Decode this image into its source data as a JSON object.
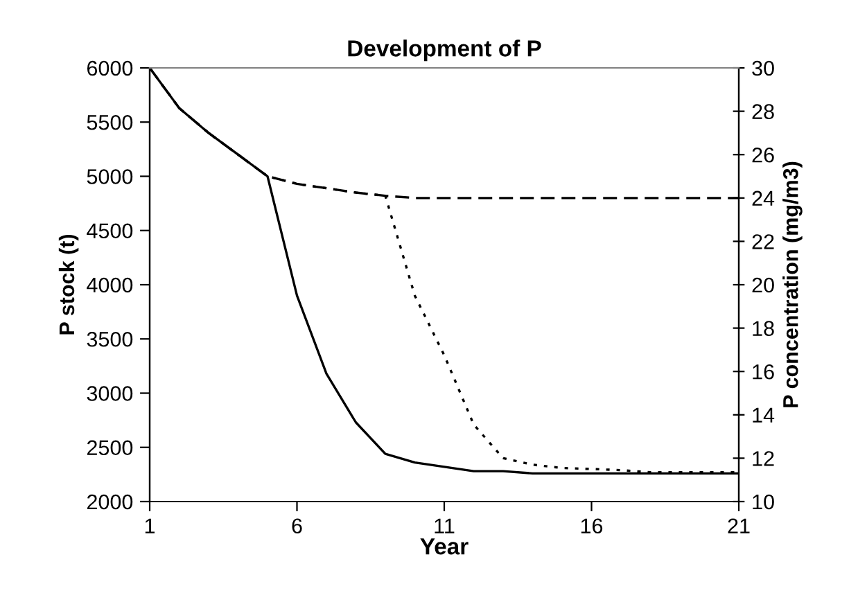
{
  "chart_data": {
    "type": "line",
    "title": "Development of P",
    "xlabel": "Year",
    "ylabel": "P stock (t)",
    "y2label": "P concentration (mg/m3)",
    "x": [
      1,
      2,
      3,
      4,
      5,
      6,
      7,
      8,
      9,
      10,
      11,
      12,
      13,
      14,
      15,
      16,
      17,
      18,
      19,
      20,
      21
    ],
    "series": [
      {
        "color": "#000000",
        "line_style": "solid",
        "values": [
          6000,
          5630,
          5400,
          5200,
          5000,
          3900,
          3180,
          2730,
          2440,
          2360,
          2320,
          2280,
          2280,
          2260,
          2260,
          2260,
          2260,
          2260,
          2260,
          2260,
          2260
        ]
      },
      {
        "color": "#000000",
        "line_style": "dashed",
        "values": [
          6000,
          5630,
          5400,
          5200,
          5000,
          4930,
          4890,
          4850,
          4820,
          4800,
          4800,
          4800,
          4800,
          4800,
          4800,
          4800,
          4800,
          4800,
          4800,
          4800,
          4800
        ]
      },
      {
        "color": "#000000",
        "line_style": "dotted",
        "values": [
          6000,
          5630,
          5400,
          5200,
          5000,
          4930,
          4890,
          4850,
          4820,
          3900,
          3350,
          2710,
          2400,
          2340,
          2310,
          2300,
          2290,
          2270,
          2270,
          2270,
          2270
        ]
      }
    ],
    "xlim": [
      1,
      21
    ],
    "xticks": [
      1,
      6,
      11,
      16,
      21
    ],
    "ylim": [
      2000,
      6000
    ],
    "yticks": [
      2000,
      2500,
      3000,
      3500,
      4000,
      4500,
      5000,
      5500,
      6000
    ],
    "y2lim": [
      10,
      30
    ],
    "y2ticks": [
      10,
      12,
      14,
      16,
      18,
      20,
      22,
      24,
      26,
      28,
      30
    ],
    "grid": false,
    "legend": false,
    "marker": "none"
  }
}
